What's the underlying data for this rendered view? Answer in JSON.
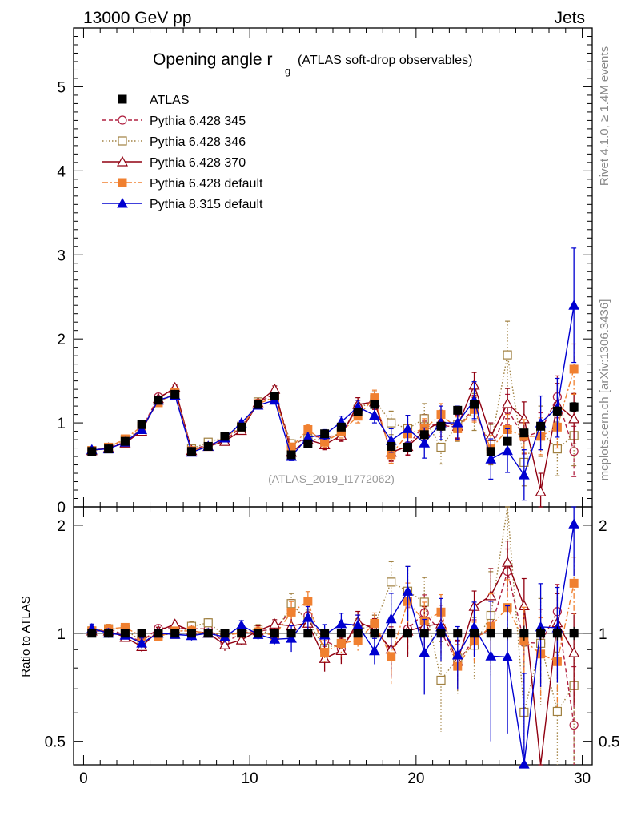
{
  "header": {
    "energy_label": "13000 GeV pp",
    "process_label": "Jets"
  },
  "side": {
    "rivet_label": "Rivet 4.1.0, ≥ 1.4M events",
    "mcplots_label": "mcplots.cern.ch [arXiv:1306.3436]"
  },
  "chart_data": {
    "type": "line",
    "title": "Opening angle r",
    "title_sub": "g",
    "title_note": "(ATLAS soft-drop observables)",
    "watermark": "(ATLAS_2019_I1772062)",
    "x": [
      0.5,
      1.5,
      2.5,
      3.5,
      4.5,
      5.5,
      6.5,
      7.5,
      8.5,
      9.5,
      10.5,
      11.5,
      12.5,
      13.5,
      14.5,
      15.5,
      16.5,
      17.5,
      18.5,
      19.5,
      20.5,
      21.5,
      22.5,
      23.5,
      24.5,
      25.5,
      26.5,
      27.5,
      28.5,
      29.5
    ],
    "xlim": [
      -0.6,
      30.6
    ],
    "ylim": [
      0,
      5.7
    ],
    "ratio_ylim": [
      0.43,
      2.25
    ],
    "ratio_ylabel": "Ratio to ATLAS",
    "x_ticks": [
      "0",
      "10",
      "20",
      "30"
    ],
    "y_ticks": [
      "0",
      "1",
      "2",
      "3",
      "4",
      "5"
    ],
    "ratio_ticks": [
      "0.5",
      "1",
      "2"
    ],
    "series": [
      {
        "name": "ATLAS",
        "color": "#000000",
        "marker": "square-filled",
        "line": "none",
        "values": [
          0.66,
          0.69,
          0.78,
          0.98,
          1.27,
          1.34,
          0.66,
          0.72,
          0.84,
          0.95,
          1.22,
          1.32,
          0.62,
          0.75,
          0.87,
          0.95,
          1.13,
          1.22,
          0.72,
          0.71,
          0.86,
          0.96,
          1.15,
          1.22,
          0.66,
          0.78,
          0.88,
          0.96,
          1.14,
          1.19
        ],
        "errors": [
          0.01,
          0.01,
          0.01,
          0.01,
          0.01,
          0.01,
          0.01,
          0.01,
          0.01,
          0.01,
          0.01,
          0.01,
          0.01,
          0.01,
          0.01,
          0.01,
          0.02,
          0.02,
          0.02,
          0.02,
          0.02,
          0.02,
          0.03,
          0.03,
          0.03,
          0.03,
          0.04,
          0.04,
          0.05,
          0.05
        ]
      },
      {
        "name": "Pythia 6.428 345",
        "color": "#b02040",
        "marker": "circle-open",
        "line": "dashed",
        "values": [
          0.67,
          0.71,
          0.77,
          0.93,
          1.31,
          1.39,
          0.68,
          0.74,
          0.79,
          0.95,
          1.24,
          1.35,
          0.72,
          0.84,
          0.83,
          0.86,
          1.19,
          1.28,
          0.64,
          0.73,
          0.98,
          0.97,
          0.95,
          1.18,
          0.68,
          1.16,
          0.83,
          0.9,
          1.31,
          0.66
        ],
        "errors": [
          0.02,
          0.02,
          0.02,
          0.03,
          0.03,
          0.03,
          0.02,
          0.02,
          0.03,
          0.03,
          0.04,
          0.04,
          0.05,
          0.06,
          0.06,
          0.07,
          0.08,
          0.09,
          0.1,
          0.11,
          0.12,
          0.13,
          0.14,
          0.15,
          0.16,
          0.18,
          0.2,
          0.22,
          0.25,
          0.3
        ]
      },
      {
        "name": "Pythia 6.428 346",
        "color": "#a08040",
        "marker": "square-open",
        "line": "dotted",
        "values": [
          0.67,
          0.71,
          0.8,
          0.93,
          1.26,
          1.33,
          0.69,
          0.77,
          0.83,
          0.96,
          1.25,
          1.3,
          0.75,
          0.81,
          0.79,
          0.89,
          1.16,
          1.28,
          1.0,
          0.93,
          1.05,
          0.71,
          0.98,
          1.13,
          0.74,
          1.81,
          0.53,
          0.9,
          0.69,
          0.85
        ],
        "errors": [
          0.02,
          0.02,
          0.02,
          0.03,
          0.03,
          0.03,
          0.02,
          0.02,
          0.03,
          0.03,
          0.04,
          0.04,
          0.05,
          0.06,
          0.06,
          0.07,
          0.08,
          0.09,
          0.14,
          0.16,
          0.18,
          0.2,
          0.2,
          0.22,
          0.24,
          0.4,
          0.28,
          0.3,
          0.32,
          0.36
        ]
      },
      {
        "name": "Pythia 6.428 370",
        "color": "#900010",
        "marker": "triangle-open",
        "line": "solid",
        "values": [
          0.67,
          0.7,
          0.76,
          0.9,
          1.29,
          1.42,
          0.67,
          0.72,
          0.78,
          0.91,
          1.24,
          1.4,
          0.65,
          0.8,
          0.74,
          0.85,
          1.22,
          1.25,
          0.65,
          0.72,
          0.9,
          1.02,
          0.96,
          1.45,
          0.84,
          1.23,
          1.05,
          0.18,
          1.22,
          1.05
        ],
        "errors": [
          0.02,
          0.02,
          0.02,
          0.03,
          0.03,
          0.03,
          0.02,
          0.02,
          0.03,
          0.03,
          0.04,
          0.04,
          0.05,
          0.06,
          0.06,
          0.07,
          0.08,
          0.09,
          0.1,
          0.11,
          0.12,
          0.13,
          0.14,
          0.15,
          0.16,
          0.18,
          0.2,
          0.22,
          0.25,
          0.3
        ]
      },
      {
        "name": "Pythia 6.428 default",
        "color": "#f08030",
        "marker": "square-filled",
        "line": "dashdot",
        "values": [
          0.67,
          0.71,
          0.81,
          0.96,
          1.24,
          1.36,
          0.67,
          0.72,
          0.83,
          0.95,
          1.23,
          1.3,
          0.71,
          0.92,
          0.77,
          0.89,
          1.08,
          1.3,
          0.62,
          0.87,
          0.93,
          1.1,
          0.93,
          1.16,
          0.69,
          0.92,
          0.84,
          0.84,
          0.95,
          1.64
        ],
        "errors": [
          0.02,
          0.02,
          0.02,
          0.03,
          0.03,
          0.03,
          0.02,
          0.02,
          0.03,
          0.03,
          0.04,
          0.04,
          0.05,
          0.06,
          0.06,
          0.07,
          0.08,
          0.09,
          0.1,
          0.11,
          0.12,
          0.13,
          0.14,
          0.15,
          0.16,
          0.18,
          0.2,
          0.22,
          0.25,
          0.3
        ]
      },
      {
        "name": "Pythia 8.315 default",
        "color": "#0000d0",
        "marker": "triangle-filled",
        "line": "solid",
        "values": [
          0.68,
          0.69,
          0.77,
          0.92,
          1.27,
          1.33,
          0.65,
          0.72,
          0.82,
          1.0,
          1.21,
          1.27,
          0.6,
          0.83,
          0.86,
          1.01,
          1.19,
          1.09,
          0.79,
          0.93,
          0.76,
          1.0,
          1.0,
          1.27,
          0.57,
          0.67,
          0.38,
          1.0,
          1.18,
          2.4
        ],
        "errors": [
          0.02,
          0.02,
          0.02,
          0.03,
          0.03,
          0.03,
          0.02,
          0.02,
          0.03,
          0.03,
          0.04,
          0.04,
          0.05,
          0.06,
          0.06,
          0.07,
          0.08,
          0.09,
          0.14,
          0.16,
          0.18,
          0.2,
          0.2,
          0.22,
          0.24,
          0.26,
          0.3,
          0.32,
          0.35,
          0.68
        ]
      }
    ]
  }
}
